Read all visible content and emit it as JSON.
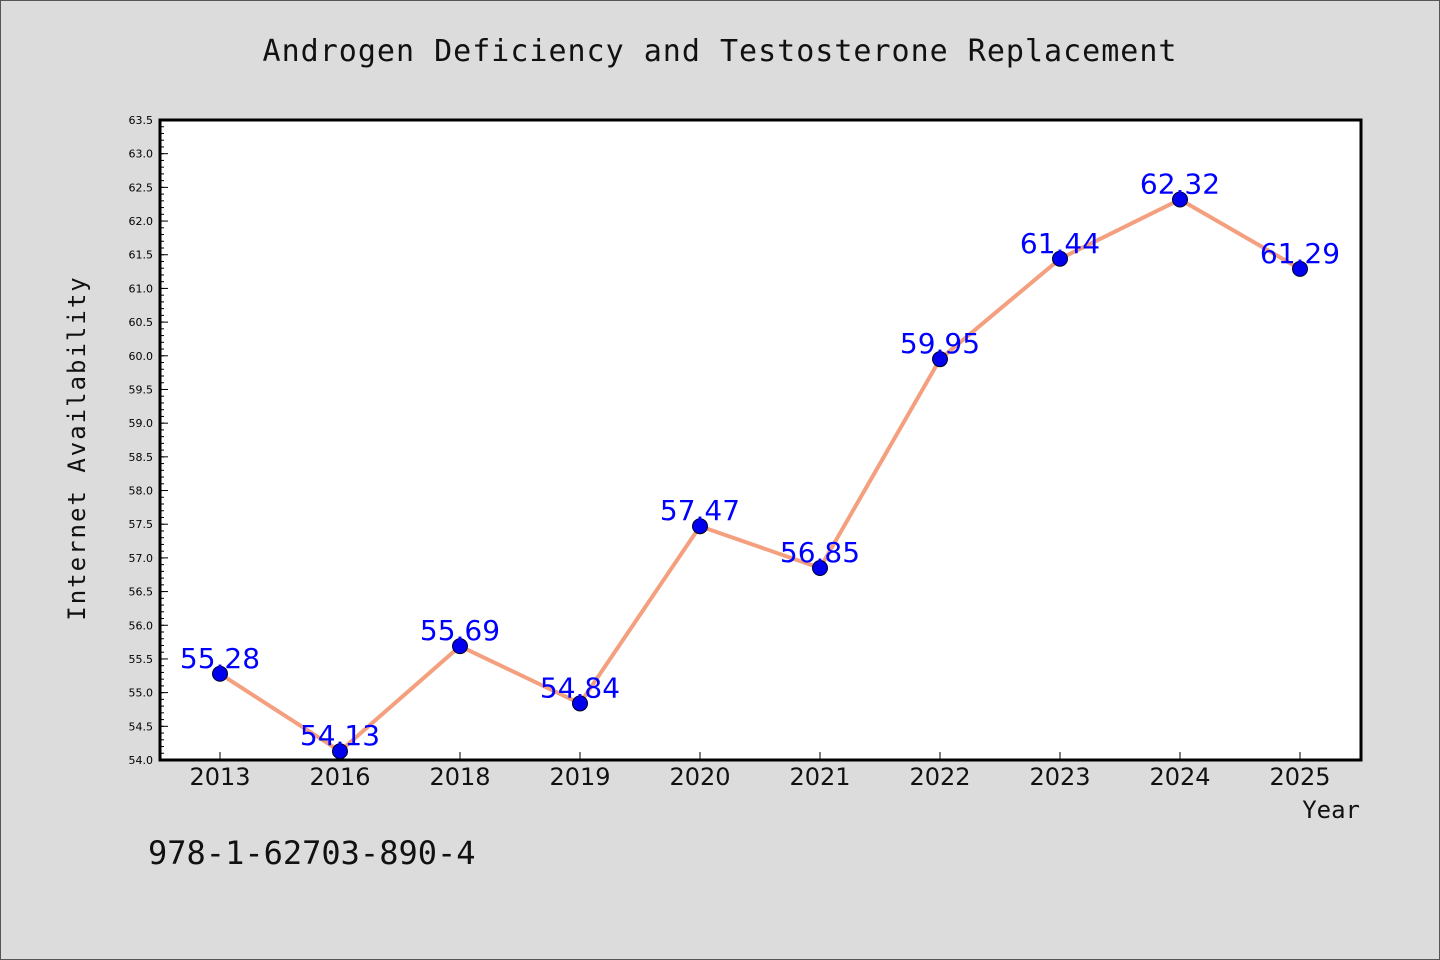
{
  "chart_data": {
    "type": "line",
    "title": "Androgen Deficiency and Testosterone Replacement",
    "xlabel": "Year",
    "ylabel": "Internet Availability",
    "categories": [
      "2013",
      "2016",
      "2018",
      "2019",
      "2020",
      "2021",
      "2022",
      "2023",
      "2024",
      "2025"
    ],
    "values": [
      55.28,
      54.13,
      55.69,
      54.84,
      57.47,
      56.85,
      59.95,
      61.44,
      62.32,
      61.29
    ],
    "data_labels": [
      "55.28",
      "54.13",
      "55.69",
      "54.84",
      "57.47",
      "56.85",
      "59.95",
      "61.44",
      "62.32",
      "61.29"
    ],
    "ylim": [
      54.0,
      63.5
    ],
    "yticks": [
      "54.0",
      "54.5",
      "55.0",
      "55.5",
      "56.0",
      "56.5",
      "57.0",
      "57.5",
      "58.0",
      "58.5",
      "59.0",
      "59.5",
      "60.0",
      "60.5",
      "61.0",
      "61.5",
      "62.0",
      "62.5",
      "63.0",
      "63.5"
    ],
    "grid": false,
    "legend": "none",
    "colors": {
      "line": "#f4a07e",
      "marker": "#0000ee",
      "data_label": "#0000ff",
      "plot_background": "#ffffff",
      "figure_background": "#dcdcdc"
    }
  },
  "footer_text": "978-1-62703-890-4"
}
